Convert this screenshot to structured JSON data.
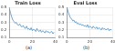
{
  "chart_data": [
    {
      "type": "line",
      "title": "Train Loss",
      "caption": "(a)",
      "x": [
        0,
        1,
        2,
        3,
        4,
        5,
        6,
        7,
        8,
        9,
        10,
        11,
        12,
        13,
        14,
        15,
        16,
        17,
        18,
        19,
        20,
        21,
        22,
        23,
        24,
        25,
        26,
        27,
        28,
        29,
        30,
        31,
        32,
        33,
        34,
        35,
        36,
        37,
        38,
        39
      ],
      "series": [
        {
          "name": "Train Loss",
          "color": "#4c8fc7",
          "values": [
            0.48,
            0.42,
            0.37,
            0.33,
            0.31,
            0.29,
            0.3,
            0.27,
            0.26,
            0.28,
            0.25,
            0.24,
            0.26,
            0.23,
            0.22,
            0.25,
            0.21,
            0.22,
            0.2,
            0.23,
            0.19,
            0.21,
            0.2,
            0.18,
            0.22,
            0.19,
            0.18,
            0.2,
            0.17,
            0.19,
            0.18,
            0.16,
            0.19,
            0.17,
            0.18,
            0.16,
            0.17,
            0.18,
            0.15,
            0.17
          ]
        }
      ],
      "xlim": [
        0,
        40
      ],
      "xticks": [
        0,
        20,
        40
      ],
      "ylim": [
        0.1,
        0.5
      ],
      "yticks": [
        0.1,
        0.2,
        0.3,
        0.4,
        0.5
      ],
      "grid": true
    },
    {
      "type": "line",
      "title": "Eval Loss",
      "caption": "(b)",
      "x": [
        0,
        1,
        2,
        3,
        4,
        5,
        6,
        7,
        8,
        9,
        10,
        11,
        12,
        13,
        14,
        15,
        16,
        17,
        18,
        19,
        20,
        21,
        22,
        23,
        24,
        25,
        26,
        27,
        28,
        29,
        30,
        31,
        32,
        33,
        34,
        35,
        36,
        37,
        38,
        39
      ],
      "series": [
        {
          "name": "Eval Loss",
          "color": "#4c8fc7",
          "values": [
            0.5,
            0.44,
            0.4,
            0.36,
            0.35,
            0.32,
            0.33,
            0.3,
            0.31,
            0.28,
            0.29,
            0.27,
            0.28,
            0.26,
            0.27,
            0.25,
            0.26,
            0.24,
            0.27,
            0.23,
            0.25,
            0.24,
            0.22,
            0.25,
            0.23,
            0.22,
            0.24,
            0.21,
            0.23,
            0.22,
            0.2,
            0.23,
            0.21,
            0.22,
            0.2,
            0.21,
            0.22,
            0.19,
            0.21,
            0.2
          ]
        }
      ],
      "xlim": [
        0,
        40
      ],
      "xticks": [
        0,
        20,
        40
      ],
      "ylim": [
        0.1,
        0.5
      ],
      "yticks": [
        0.1,
        0.2,
        0.3,
        0.4,
        0.5
      ],
      "grid": true
    }
  ]
}
